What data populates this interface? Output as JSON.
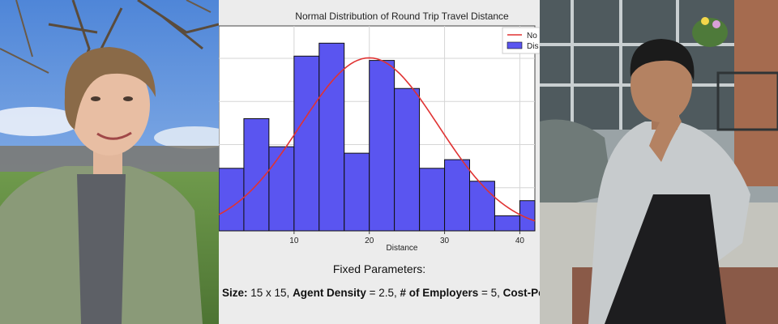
{
  "chart_data": {
    "type": "bar",
    "title": "Normal Distribution of Round Trip Travel Distance",
    "xlabel": "Distance",
    "ylabel": "",
    "xlim": [
      0,
      42
    ],
    "ylim": [
      0,
      0.095
    ],
    "x_ticks": [
      "10",
      "20",
      "30",
      "40"
    ],
    "bin_width": 3.33,
    "bin_starts": [
      0,
      3.33,
      6.67,
      10,
      13.33,
      16.67,
      20,
      23.33,
      26.67,
      30,
      33.33,
      36.67,
      40
    ],
    "values": [
      0.029,
      0.052,
      0.039,
      0.081,
      0.087,
      0.036,
      0.079,
      0.066,
      0.029,
      0.033,
      0.023,
      0.007,
      0.014
    ],
    "normal_curve": {
      "mean": 20,
      "std": 9.2
    },
    "legend": [
      "No",
      "Dis"
    ],
    "legend_position": "top-right",
    "grid": true,
    "colors": {
      "bars": "#5a55f0",
      "bar_edge": "#111111",
      "curve": "#e03232"
    }
  },
  "params": {
    "title": "Fixed Parameters:",
    "items": [
      {
        "label": "Size:",
        "value": " 15 x 15, "
      },
      {
        "label": "Agent Density",
        "value": " = 2.5, "
      },
      {
        "label": "# of Employers",
        "value": " = 5, "
      },
      {
        "label": "Cost-Per-D",
        "value": ""
      }
    ]
  }
}
